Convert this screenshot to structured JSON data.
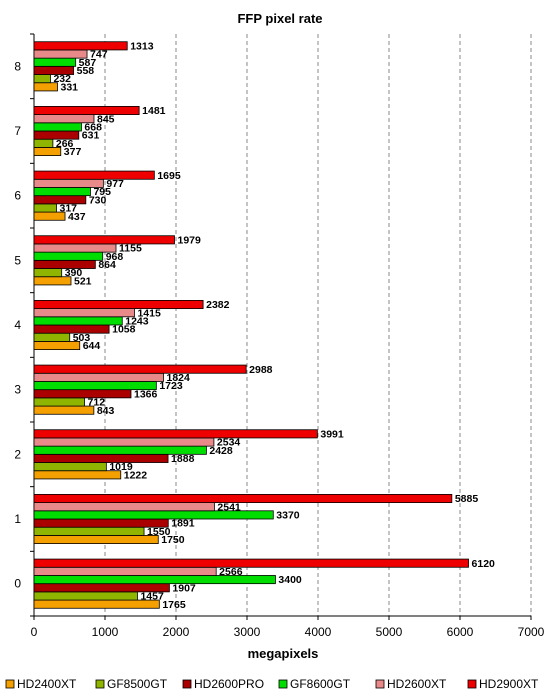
{
  "chart_data": {
    "type": "bar",
    "orientation": "horizontal",
    "title": "FFP pixel rate",
    "xlabel": "megapixels",
    "ylabel": "",
    "xlim": [
      0,
      7000
    ],
    "xticks": [
      "0",
      "1000",
      "2000",
      "3000",
      "4000",
      "5000",
      "6000",
      "7000"
    ],
    "grid": "vertical dashed",
    "legend_position": "bottom",
    "categories": [
      "0",
      "1",
      "2",
      "3",
      "4",
      "5",
      "6",
      "7",
      "8"
    ],
    "series": [
      {
        "name": "HD2400XT",
        "color": "#f4a000",
        "values": [
          1765,
          1750,
          1222,
          843,
          644,
          521,
          437,
          377,
          331
        ]
      },
      {
        "name": "GF8500GT",
        "color": "#8fb500",
        "values": [
          1457,
          1550,
          1019,
          712,
          503,
          390,
          317,
          266,
          232
        ]
      },
      {
        "name": "HD2600PRO",
        "color": "#aa0000",
        "values": [
          1907,
          1891,
          1888,
          1366,
          1058,
          864,
          730,
          631,
          558
        ]
      },
      {
        "name": "GF8600GT",
        "color": "#00dd00",
        "values": [
          3400,
          3370,
          2428,
          1723,
          1243,
          968,
          795,
          668,
          587
        ]
      },
      {
        "name": "HD2600XT",
        "color": "#e98a8a",
        "values": [
          2566,
          2541,
          2534,
          1824,
          1415,
          1155,
          977,
          845,
          747
        ]
      },
      {
        "name": "HD2900XT",
        "color": "#ee0000",
        "values": [
          6120,
          5885,
          3991,
          2988,
          2382,
          1979,
          1695,
          1481,
          1313
        ]
      }
    ]
  }
}
